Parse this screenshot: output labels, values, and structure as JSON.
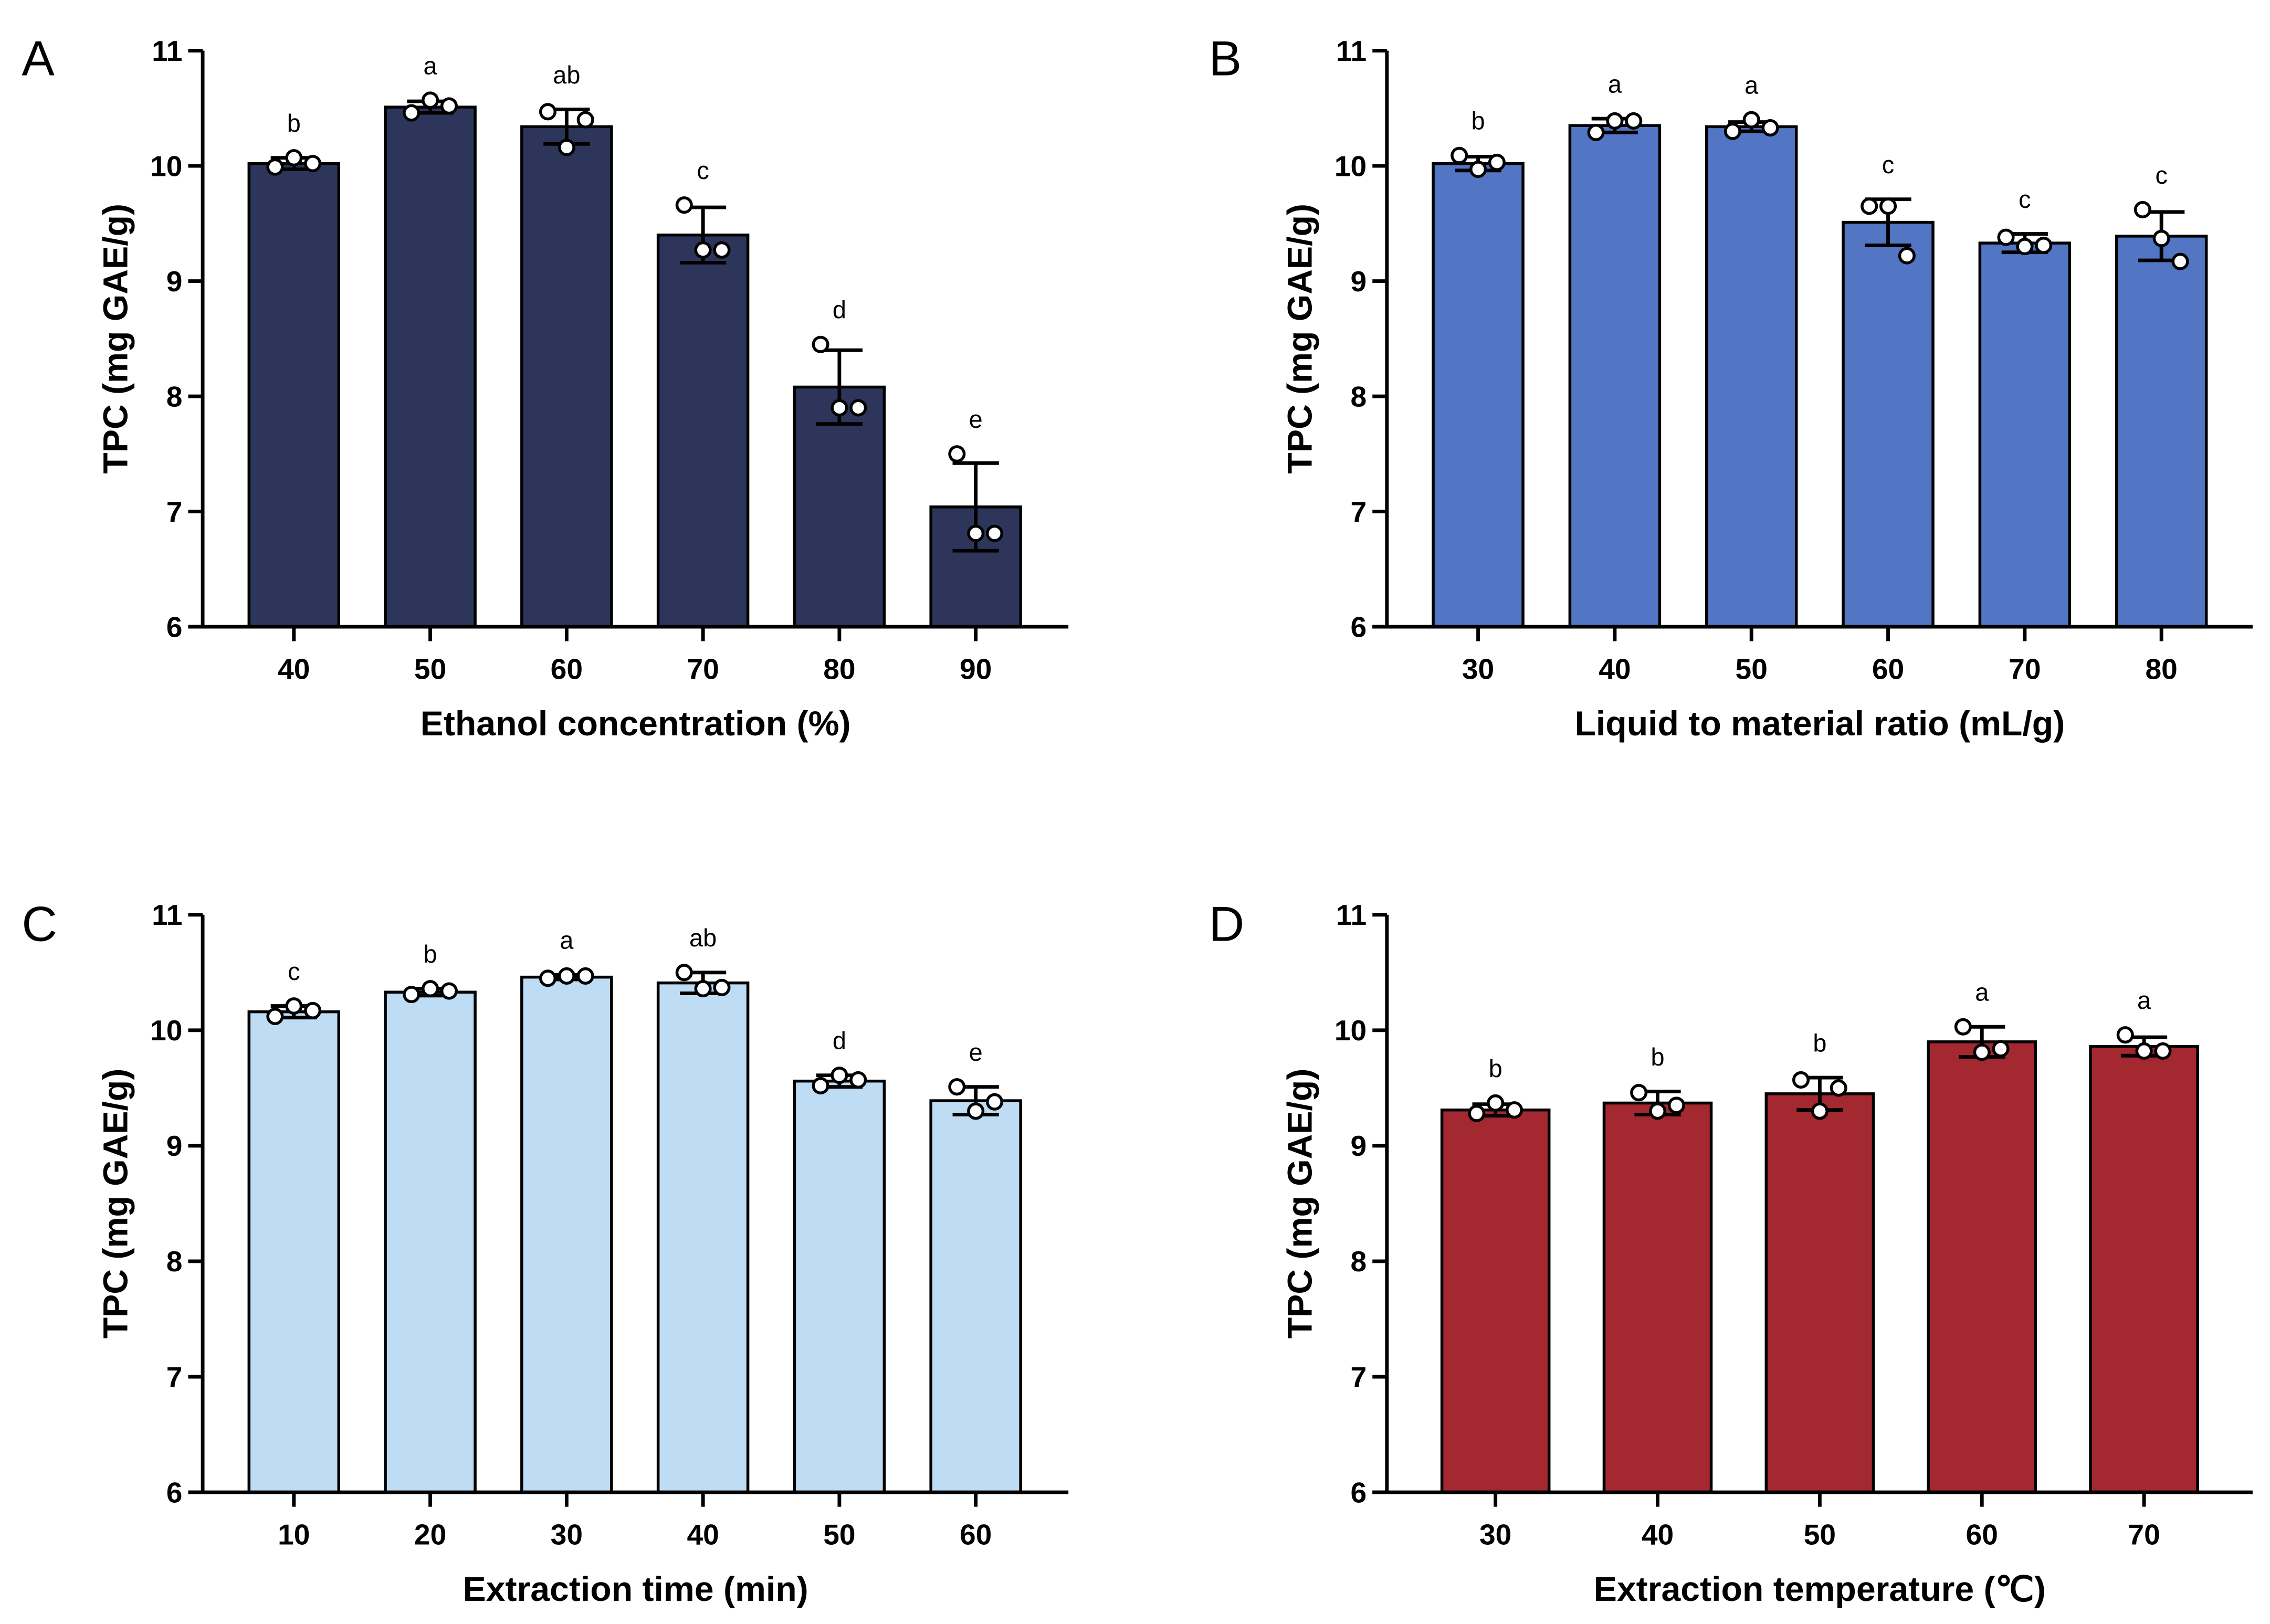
{
  "chart_data": [
    {
      "type": "bar",
      "panel": "A",
      "color": "#2d365a",
      "xlabel": "Ethanol concentration (%)",
      "ylabel": "TPC (mg GAE/g)",
      "ylim": [
        6,
        11
      ],
      "yticks": [
        "6",
        "7",
        "8",
        "9",
        "10",
        "11"
      ],
      "categories": [
        "40",
        "50",
        "60",
        "70",
        "80",
        "90"
      ],
      "values": [
        10.02,
        10.51,
        10.34,
        9.4,
        8.08,
        7.04
      ],
      "sd": [
        0.05,
        0.05,
        0.15,
        0.24,
        0.32,
        0.38
      ],
      "points": [
        [
          9.99,
          10.07,
          10.02
        ],
        [
          10.46,
          10.57,
          10.52
        ],
        [
          10.47,
          10.16,
          10.4
        ],
        [
          9.66,
          9.27,
          9.27
        ],
        [
          8.45,
          7.9,
          7.9
        ],
        [
          7.5,
          6.81,
          6.81
        ]
      ],
      "letters": [
        "b",
        "a",
        "ab",
        "c",
        "d",
        "e"
      ]
    },
    {
      "type": "bar",
      "panel": "B",
      "color": "#5276c4",
      "xlabel": "Liquid to material ratio (mL/g)",
      "ylabel": "TPC (mg GAE/g)",
      "ylim": [
        6,
        11
      ],
      "yticks": [
        "6",
        "7",
        "8",
        "9",
        "10",
        "11"
      ],
      "categories": [
        "30",
        "40",
        "50",
        "60",
        "70",
        "80"
      ],
      "values": [
        10.02,
        10.35,
        10.34,
        9.51,
        9.33,
        9.39
      ],
      "sd": [
        0.06,
        0.06,
        0.04,
        0.2,
        0.08,
        0.21
      ],
      "points": [
        [
          10.09,
          9.97,
          10.03
        ],
        [
          10.29,
          10.39,
          10.39
        ],
        [
          10.3,
          10.4,
          10.33
        ],
        [
          9.65,
          9.65,
          9.22
        ],
        [
          9.38,
          9.3,
          9.31
        ],
        [
          9.62,
          9.37,
          9.17
        ]
      ],
      "letters": [
        "b",
        "a",
        "a",
        "c",
        "c",
        "c"
      ]
    },
    {
      "type": "bar",
      "panel": "C",
      "color": "#bedcf3",
      "xlabel": "Extraction time (min)",
      "ylabel": "TPC (mg GAE/g)",
      "ylim": [
        6,
        11
      ],
      "yticks": [
        "6",
        "7",
        "8",
        "9",
        "10",
        "11"
      ],
      "categories": [
        "10",
        "20",
        "30",
        "40",
        "50",
        "60"
      ],
      "values": [
        10.16,
        10.33,
        10.46,
        10.41,
        9.56,
        9.39
      ],
      "sd": [
        0.05,
        0.03,
        0.02,
        0.09,
        0.05,
        0.12
      ],
      "points": [
        [
          10.12,
          10.21,
          10.17
        ],
        [
          10.31,
          10.36,
          10.34
        ],
        [
          10.45,
          10.47,
          10.47
        ],
        [
          10.5,
          10.36,
          10.37
        ],
        [
          9.52,
          9.61,
          9.57
        ],
        [
          9.51,
          9.3,
          9.38
        ]
      ],
      "letters": [
        "c",
        "b",
        "a",
        "ab",
        "d",
        "e"
      ]
    },
    {
      "type": "bar",
      "panel": "D",
      "color": "#a4282f",
      "xlabel": "Extraction temperature (℃)",
      "ylabel": "TPC (mg GAE/g)",
      "ylim": [
        6,
        11
      ],
      "yticks": [
        "6",
        "7",
        "8",
        "9",
        "10",
        "11"
      ],
      "categories": [
        "30",
        "40",
        "50",
        "60",
        "70"
      ],
      "values": [
        9.31,
        9.37,
        9.45,
        9.9,
        9.86
      ],
      "sd": [
        0.05,
        0.1,
        0.14,
        0.13,
        0.08
      ],
      "points": [
        [
          9.28,
          9.37,
          9.31
        ],
        [
          9.46,
          9.3,
          9.35
        ],
        [
          9.57,
          9.3,
          9.5
        ],
        [
          10.03,
          9.81,
          9.84
        ],
        [
          9.96,
          9.82,
          9.82
        ]
      ],
      "letters": [
        "b",
        "b",
        "b",
        "a",
        "a"
      ]
    }
  ]
}
